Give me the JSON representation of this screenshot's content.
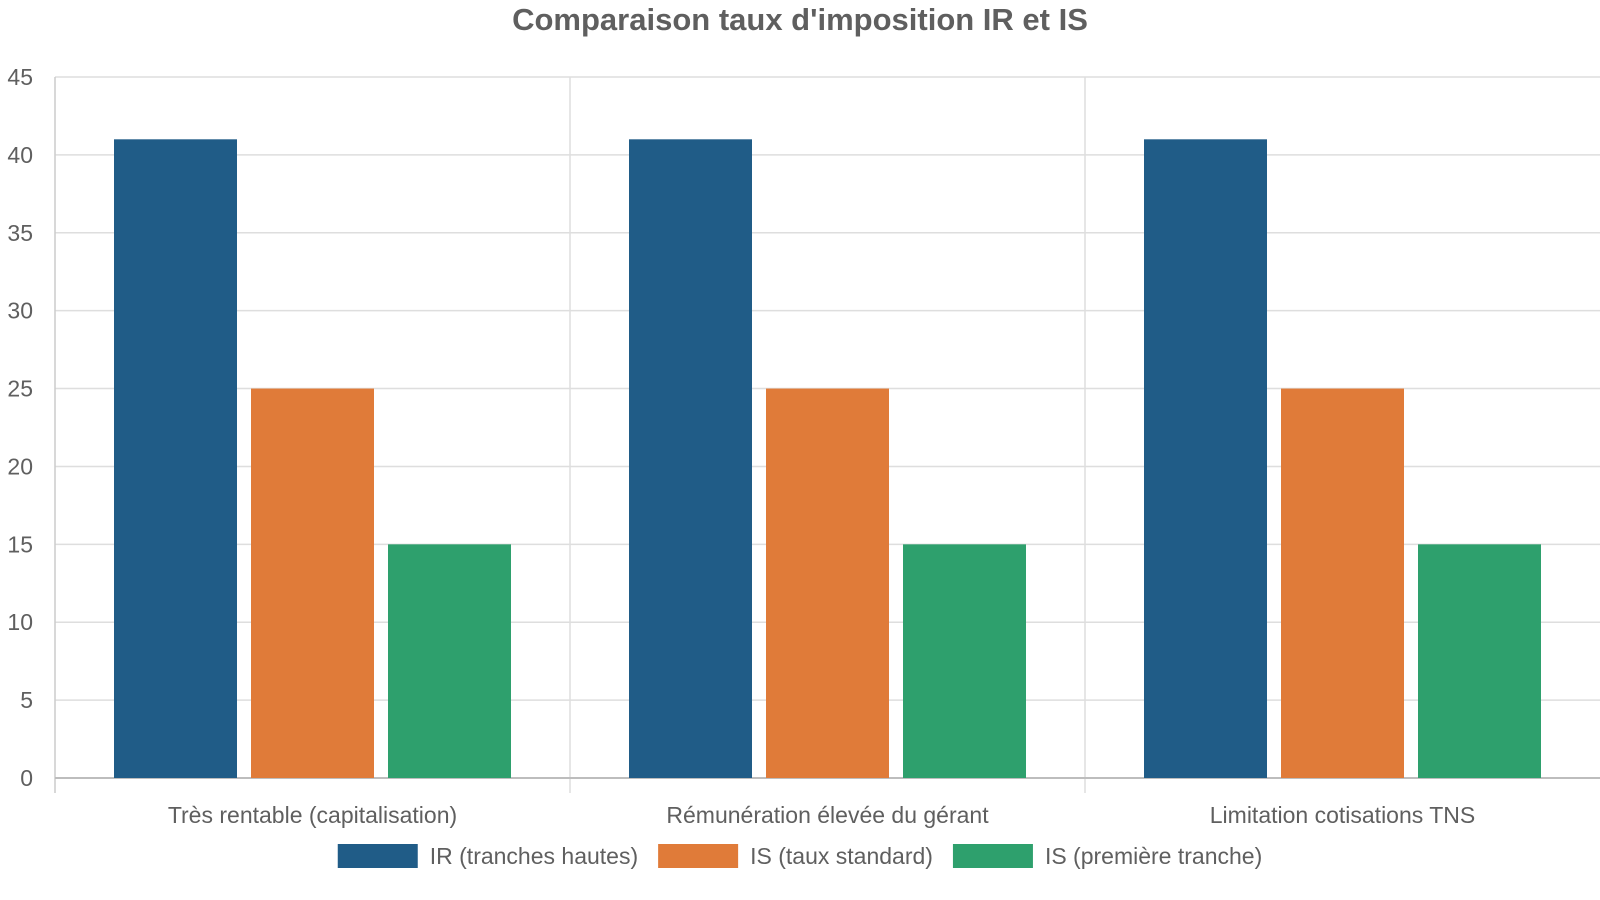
{
  "chart_data": {
    "type": "bar",
    "title": "Comparaison taux d'imposition IR et IS",
    "xlabel": "",
    "ylabel": "",
    "categories": [
      "Très rentable (capitalisation)",
      "Rémunération élevée du gérant",
      "Limitation cotisations TNS"
    ],
    "series": [
      {
        "name": "IR (tranches hautes)",
        "values": [
          41,
          41,
          41
        ],
        "color": "#205c87"
      },
      {
        "name": "IS (taux standard)",
        "values": [
          25,
          25,
          25
        ],
        "color": "#e07b39"
      },
      {
        "name": "IS (première tranche)",
        "values": [
          15,
          15,
          15
        ],
        "color": "#2ea06d"
      }
    ],
    "ylim": [
      0,
      45
    ],
    "yticks": [
      0,
      5,
      10,
      15,
      20,
      25,
      30,
      35,
      40,
      45
    ],
    "grid": true,
    "legend_position": "bottom"
  }
}
